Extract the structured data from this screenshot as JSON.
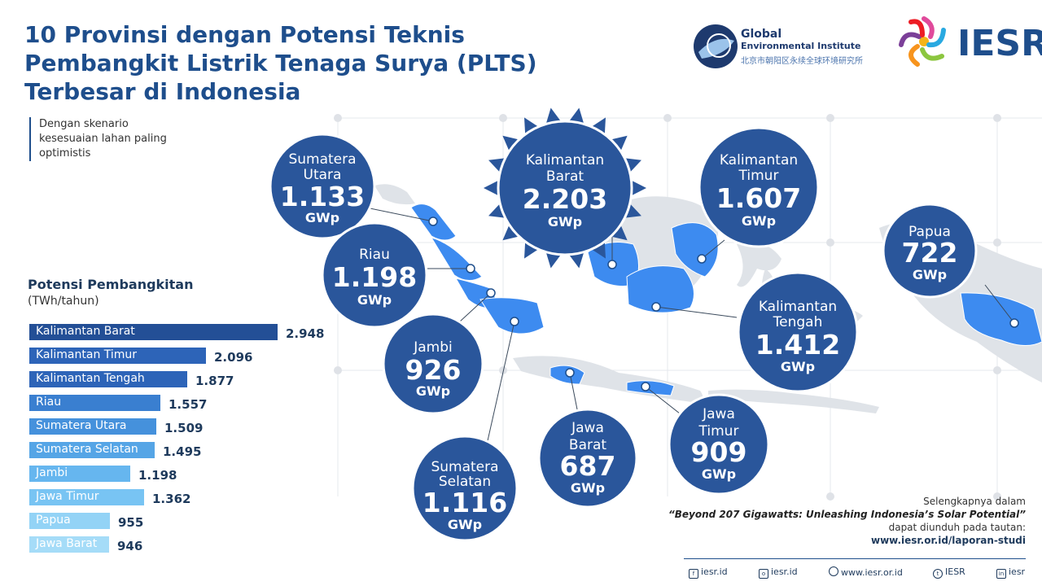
{
  "title": {
    "line1": "10 Provinsi dengan Potensi Teknis",
    "line2": "Pembangkit Listrik Tenaga Surya (PLTS)",
    "line3": "Terbesar di Indonesia"
  },
  "scenario_note": {
    "line1": "Dengan skenario",
    "line2": "kesesuaian lahan paling",
    "line3": "optimistis"
  },
  "logos": {
    "gei_line1": "Global",
    "gei_line2": "Environmental Institute",
    "gei_cn": "北京市朝阳区永续全球环境研究所",
    "iesr": "IESR"
  },
  "bar_chart": {
    "title": "Potensi Pembangkitan",
    "unit": "(TWh/tahun)"
  },
  "chart_data": [
    {
      "type": "bar",
      "orientation": "horizontal",
      "title": "Potensi Pembangkitan",
      "unit": "(TWh/tahun)",
      "categories": [
        "Kalimantan Barat",
        "Kalimantan Timur",
        "Kalimantan Tengah",
        "Riau",
        "Sumatera Utara",
        "Sumatera Selatan",
        "Jambi",
        "Jawa Timur",
        "Papua",
        "Jawa Barat"
      ],
      "values": [
        2948,
        2096,
        1877,
        1557,
        1509,
        1495,
        1198,
        1362,
        955,
        946
      ],
      "value_labels": [
        "2.948",
        "2.096",
        "1.877",
        "1.557",
        "1.509",
        "1.495",
        "1.198",
        "1.362",
        "955",
        "946"
      ],
      "colors": [
        "#234f96",
        "#2d64b8",
        "#2d64b8",
        "#3a7fd0",
        "#4591dc",
        "#55a5e6",
        "#66b6ef",
        "#78c4f3",
        "#93d3f6",
        "#a5dcf8"
      ]
    },
    {
      "type": "map-bubbles",
      "unit": "GWp",
      "points": [
        {
          "name": "Kalimantan Barat",
          "value": "2.203"
        },
        {
          "name": "Kalimantan Timur",
          "value": "1.607"
        },
        {
          "name": "Kalimantan Tengah",
          "value": "1.412"
        },
        {
          "name": "Riau",
          "value": "1.198"
        },
        {
          "name": "Sumatera Utara",
          "value": "1.133"
        },
        {
          "name": "Sumatera Selatan",
          "value": "1.116"
        },
        {
          "name": "Jambi",
          "value": "926"
        },
        {
          "name": "Jawa Timur",
          "value": "909"
        },
        {
          "name": "Papua",
          "value": "722"
        },
        {
          "name": "Jawa Barat",
          "value": "687"
        }
      ]
    }
  ],
  "bubbles": {
    "sumut": {
      "l1": "Sumatera",
      "l2": "Utara",
      "val": "1.133",
      "unit": "GWp"
    },
    "riau": {
      "l1": "Riau",
      "val": "1.198",
      "unit": "GWp"
    },
    "jambi": {
      "l1": "Jambi",
      "val": "926",
      "unit": "GWp"
    },
    "sumsel": {
      "l1": "Sumatera",
      "l2": "Selatan",
      "val": "1.116",
      "unit": "GWp"
    },
    "kalbar": {
      "l1": "Kalimantan",
      "l2": "Barat",
      "val": "2.203",
      "unit": "GWp"
    },
    "kaltim": {
      "l1": "Kalimantan",
      "l2": "Timur",
      "val": "1.607",
      "unit": "GWp"
    },
    "kalteng": {
      "l1": "Kalimantan",
      "l2": "Tengah",
      "val": "1.412",
      "unit": "GWp"
    },
    "papua": {
      "l1": "Papua",
      "val": "722",
      "unit": "GWp"
    },
    "jabar": {
      "l1": "Jawa",
      "l2": "Barat",
      "val": "687",
      "unit": "GWp"
    },
    "jatim": {
      "l1": "Jawa",
      "l2": "Timur",
      "val": "909",
      "unit": "GWp"
    }
  },
  "info": {
    "line1": "Selengkapnya dalam",
    "ref": "“Beyond 207 Gigawatts: Unleashing Indonesia’s Solar Potential”",
    "line3": "dapat diunduh pada tautan:",
    "url": "www.iesr.or.id/laporan-studi"
  },
  "footer": {
    "fb": "iesr.id",
    "ig": "iesr.id",
    "web": "www.iesr.or.id",
    "tw": "IESR",
    "li": "iesr"
  },
  "colors": {
    "primary": "#1e4e8c",
    "bubble": "#2a569b",
    "map_highlight": "#3d8bf0",
    "map_base": "#dfe3e8"
  }
}
